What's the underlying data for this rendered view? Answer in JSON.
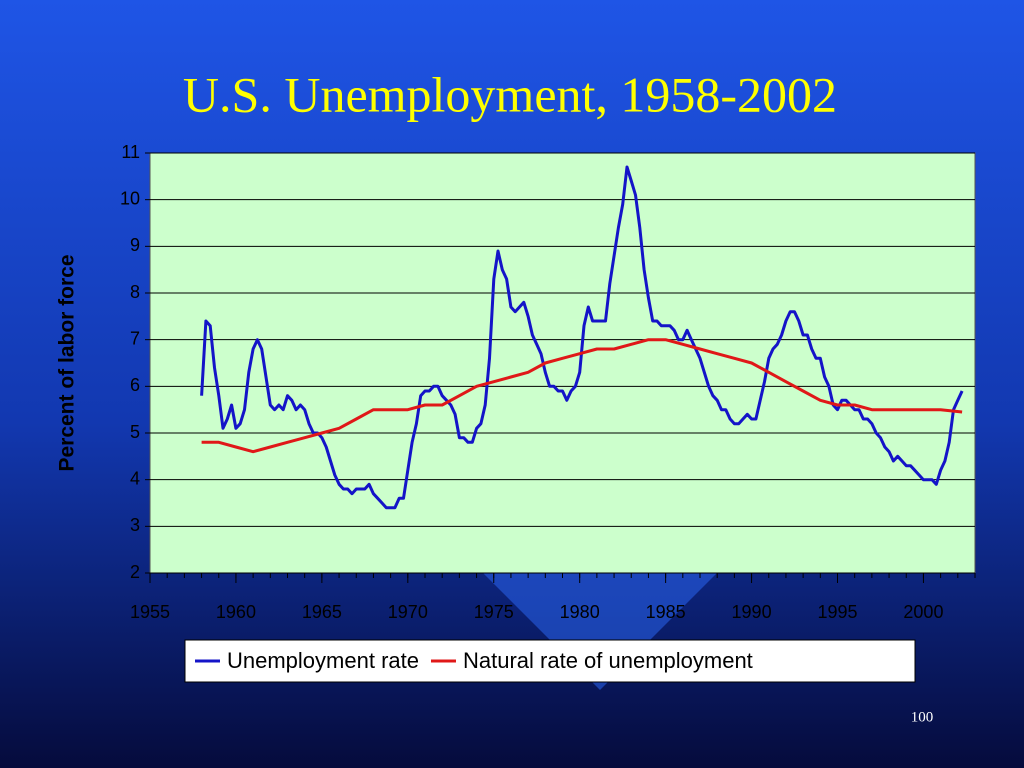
{
  "page_number": "100",
  "chart_data": {
    "type": "line",
    "title": "U.S. Unemployment, 1958-2002",
    "y_label": "Percent of labor force",
    "xlim": [
      1955,
      2003
    ],
    "xticks": [
      1955,
      1960,
      1965,
      1970,
      1975,
      1980,
      1985,
      1990,
      1995,
      2000
    ],
    "ylim": [
      2,
      11
    ],
    "yticks": [
      2,
      3,
      4,
      5,
      6,
      7,
      8,
      9,
      10,
      11
    ],
    "grid": true,
    "legend": "bottom",
    "series": [
      {
        "name": "Unemployment rate",
        "color": "#1414c8",
        "x": [
          1958,
          1958.25,
          1958.5,
          1958.75,
          1959,
          1959.25,
          1959.5,
          1959.75,
          1960,
          1960.25,
          1960.5,
          1960.75,
          1961,
          1961.25,
          1961.5,
          1961.75,
          1962,
          1962.25,
          1962.5,
          1962.75,
          1963,
          1963.25,
          1963.5,
          1963.75,
          1964,
          1964.25,
          1964.5,
          1964.75,
          1965,
          1965.25,
          1965.5,
          1965.75,
          1966,
          1966.25,
          1966.5,
          1966.75,
          1967,
          1967.25,
          1967.5,
          1967.75,
          1968,
          1968.25,
          1968.5,
          1968.75,
          1969,
          1969.25,
          1969.5,
          1969.75,
          1970,
          1970.25,
          1970.5,
          1970.75,
          1971,
          1971.25,
          1971.5,
          1971.75,
          1972,
          1972.25,
          1972.5,
          1972.75,
          1973,
          1973.25,
          1973.5,
          1973.75,
          1974,
          1974.25,
          1974.5,
          1974.75,
          1975,
          1975.25,
          1975.5,
          1975.75,
          1976,
          1976.25,
          1976.5,
          1976.75,
          1977,
          1977.25,
          1977.5,
          1977.75,
          1978,
          1978.25,
          1978.5,
          1978.75,
          1979,
          1979.25,
          1979.5,
          1979.75,
          1980,
          1980.25,
          1980.5,
          1980.75,
          1981,
          1981.25,
          1981.5,
          1981.75,
          1982,
          1982.25,
          1982.5,
          1982.75,
          1983,
          1983.25,
          1983.5,
          1983.75,
          1984,
          1984.25,
          1984.5,
          1984.75,
          1985,
          1985.25,
          1985.5,
          1985.75,
          1986,
          1986.25,
          1986.5,
          1986.75,
          1987,
          1987.25,
          1987.5,
          1987.75,
          1988,
          1988.25,
          1988.5,
          1988.75,
          1989,
          1989.25,
          1989.5,
          1989.75,
          1990,
          1990.25,
          1990.5,
          1990.75,
          1991,
          1991.25,
          1991.5,
          1991.75,
          1992,
          1992.25,
          1992.5,
          1992.75,
          1993,
          1993.25,
          1993.5,
          1993.75,
          1994,
          1994.25,
          1994.5,
          1994.75,
          1995,
          1995.25,
          1995.5,
          1995.75,
          1996,
          1996.25,
          1996.5,
          1996.75,
          1997,
          1997.25,
          1997.5,
          1997.75,
          1998,
          1998.25,
          1998.5,
          1998.75,
          1999,
          1999.25,
          1999.5,
          1999.75,
          2000,
          2000.25,
          2000.5,
          2000.75,
          2001,
          2001.25,
          2001.5,
          2001.75,
          2002,
          2002.25
        ],
        "values": [
          5.8,
          7.4,
          7.3,
          6.4,
          5.8,
          5.1,
          5.3,
          5.6,
          5.1,
          5.2,
          5.5,
          6.3,
          6.8,
          7.0,
          6.8,
          6.2,
          5.6,
          5.5,
          5.6,
          5.5,
          5.8,
          5.7,
          5.5,
          5.6,
          5.5,
          5.2,
          5.0,
          5.0,
          4.9,
          4.7,
          4.4,
          4.1,
          3.9,
          3.8,
          3.8,
          3.7,
          3.8,
          3.8,
          3.8,
          3.9,
          3.7,
          3.6,
          3.5,
          3.4,
          3.4,
          3.4,
          3.6,
          3.6,
          4.2,
          4.8,
          5.2,
          5.8,
          5.9,
          5.9,
          6.0,
          6.0,
          5.8,
          5.7,
          5.6,
          5.4,
          4.9,
          4.9,
          4.8,
          4.8,
          5.1,
          5.2,
          5.6,
          6.6,
          8.3,
          8.9,
          8.5,
          8.3,
          7.7,
          7.6,
          7.7,
          7.8,
          7.5,
          7.1,
          6.9,
          6.7,
          6.3,
          6.0,
          6.0,
          5.9,
          5.9,
          5.7,
          5.9,
          6.0,
          6.3,
          7.3,
          7.7,
          7.4,
          7.4,
          7.4,
          7.4,
          8.2,
          8.8,
          9.4,
          9.9,
          10.7,
          10.4,
          10.1,
          9.4,
          8.5,
          7.9,
          7.4,
          7.4,
          7.3,
          7.3,
          7.3,
          7.2,
          7.0,
          7.0,
          7.2,
          7.0,
          6.8,
          6.6,
          6.3,
          6.0,
          5.8,
          5.7,
          5.5,
          5.5,
          5.3,
          5.2,
          5.2,
          5.3,
          5.4,
          5.3,
          5.3,
          5.7,
          6.1,
          6.6,
          6.8,
          6.9,
          7.1,
          7.4,
          7.6,
          7.6,
          7.4,
          7.1,
          7.1,
          6.8,
          6.6,
          6.6,
          6.2,
          6.0,
          5.6,
          5.5,
          5.7,
          5.7,
          5.6,
          5.5,
          5.5,
          5.3,
          5.3,
          5.2,
          5.0,
          4.9,
          4.7,
          4.6,
          4.4,
          4.5,
          4.4,
          4.3,
          4.3,
          4.2,
          4.1,
          4.0,
          4.0,
          4.0,
          3.9,
          4.2,
          4.4,
          4.8,
          5.5,
          5.7,
          5.9
        ]
      },
      {
        "name": "Natural rate of unemployment",
        "color": "#e01818",
        "x": [
          1958,
          1959,
          1960,
          1961,
          1962,
          1963,
          1964,
          1965,
          1966,
          1967,
          1968,
          1969,
          1970,
          1971,
          1972,
          1973,
          1974,
          1975,
          1976,
          1977,
          1978,
          1979,
          1980,
          1981,
          1982,
          1983,
          1984,
          1985,
          1986,
          1987,
          1988,
          1989,
          1990,
          1991,
          1992,
          1993,
          1994,
          1995,
          1996,
          1997,
          1998,
          1999,
          2000,
          2001,
          2002.25
        ],
        "values": [
          4.8,
          4.8,
          4.7,
          4.6,
          4.7,
          4.8,
          4.9,
          5.0,
          5.1,
          5.3,
          5.5,
          5.5,
          5.5,
          5.6,
          5.6,
          5.8,
          6.0,
          6.1,
          6.2,
          6.3,
          6.5,
          6.6,
          6.7,
          6.8,
          6.8,
          6.9,
          7.0,
          7.0,
          6.9,
          6.8,
          6.7,
          6.6,
          6.5,
          6.3,
          6.1,
          5.9,
          5.7,
          5.6,
          5.6,
          5.5,
          5.5,
          5.5,
          5.5,
          5.5,
          5.45
        ]
      }
    ]
  }
}
